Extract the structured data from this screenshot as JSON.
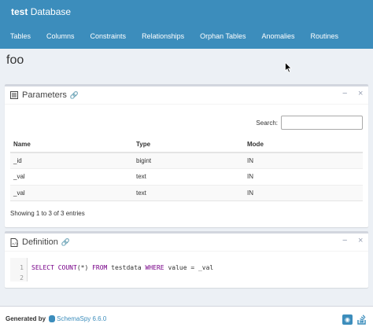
{
  "header": {
    "brand_bold": "test",
    "brand_rest": "Database",
    "nav": [
      "Tables",
      "Columns",
      "Constraints",
      "Relationships",
      "Orphan Tables",
      "Anomalies",
      "Routines"
    ]
  },
  "page": {
    "title": "foo"
  },
  "parameters": {
    "title": "Parameters",
    "search_label": "Search:",
    "search_value": "",
    "columns": [
      "Name",
      "Type",
      "Mode"
    ],
    "rows": [
      {
        "name": "_id",
        "type": "bigint",
        "mode": "IN"
      },
      {
        "name": "_val",
        "type": "text",
        "mode": "IN"
      },
      {
        "name": "_val",
        "type": "text",
        "mode": "IN"
      }
    ],
    "info": "Showing 1 to 3 of 3 entries",
    "collapse_label": "−",
    "close_label": "×"
  },
  "definition": {
    "title": "Definition",
    "line_numbers": [
      "1",
      "2"
    ],
    "collapse_label": "−",
    "close_label": "×"
  },
  "footer": {
    "generated_by": "Generated by",
    "product": "SchemaSpy 6.6.0"
  },
  "colors": {
    "primary": "#3c8dbc",
    "background": "#ecf0f5",
    "keyword": "#770088"
  },
  "icons": {
    "parameters": "table-list-icon",
    "definition": "code-file-icon",
    "link": "link-icon",
    "github": "github-icon",
    "stackoverflow": "stackoverflow-icon"
  }
}
